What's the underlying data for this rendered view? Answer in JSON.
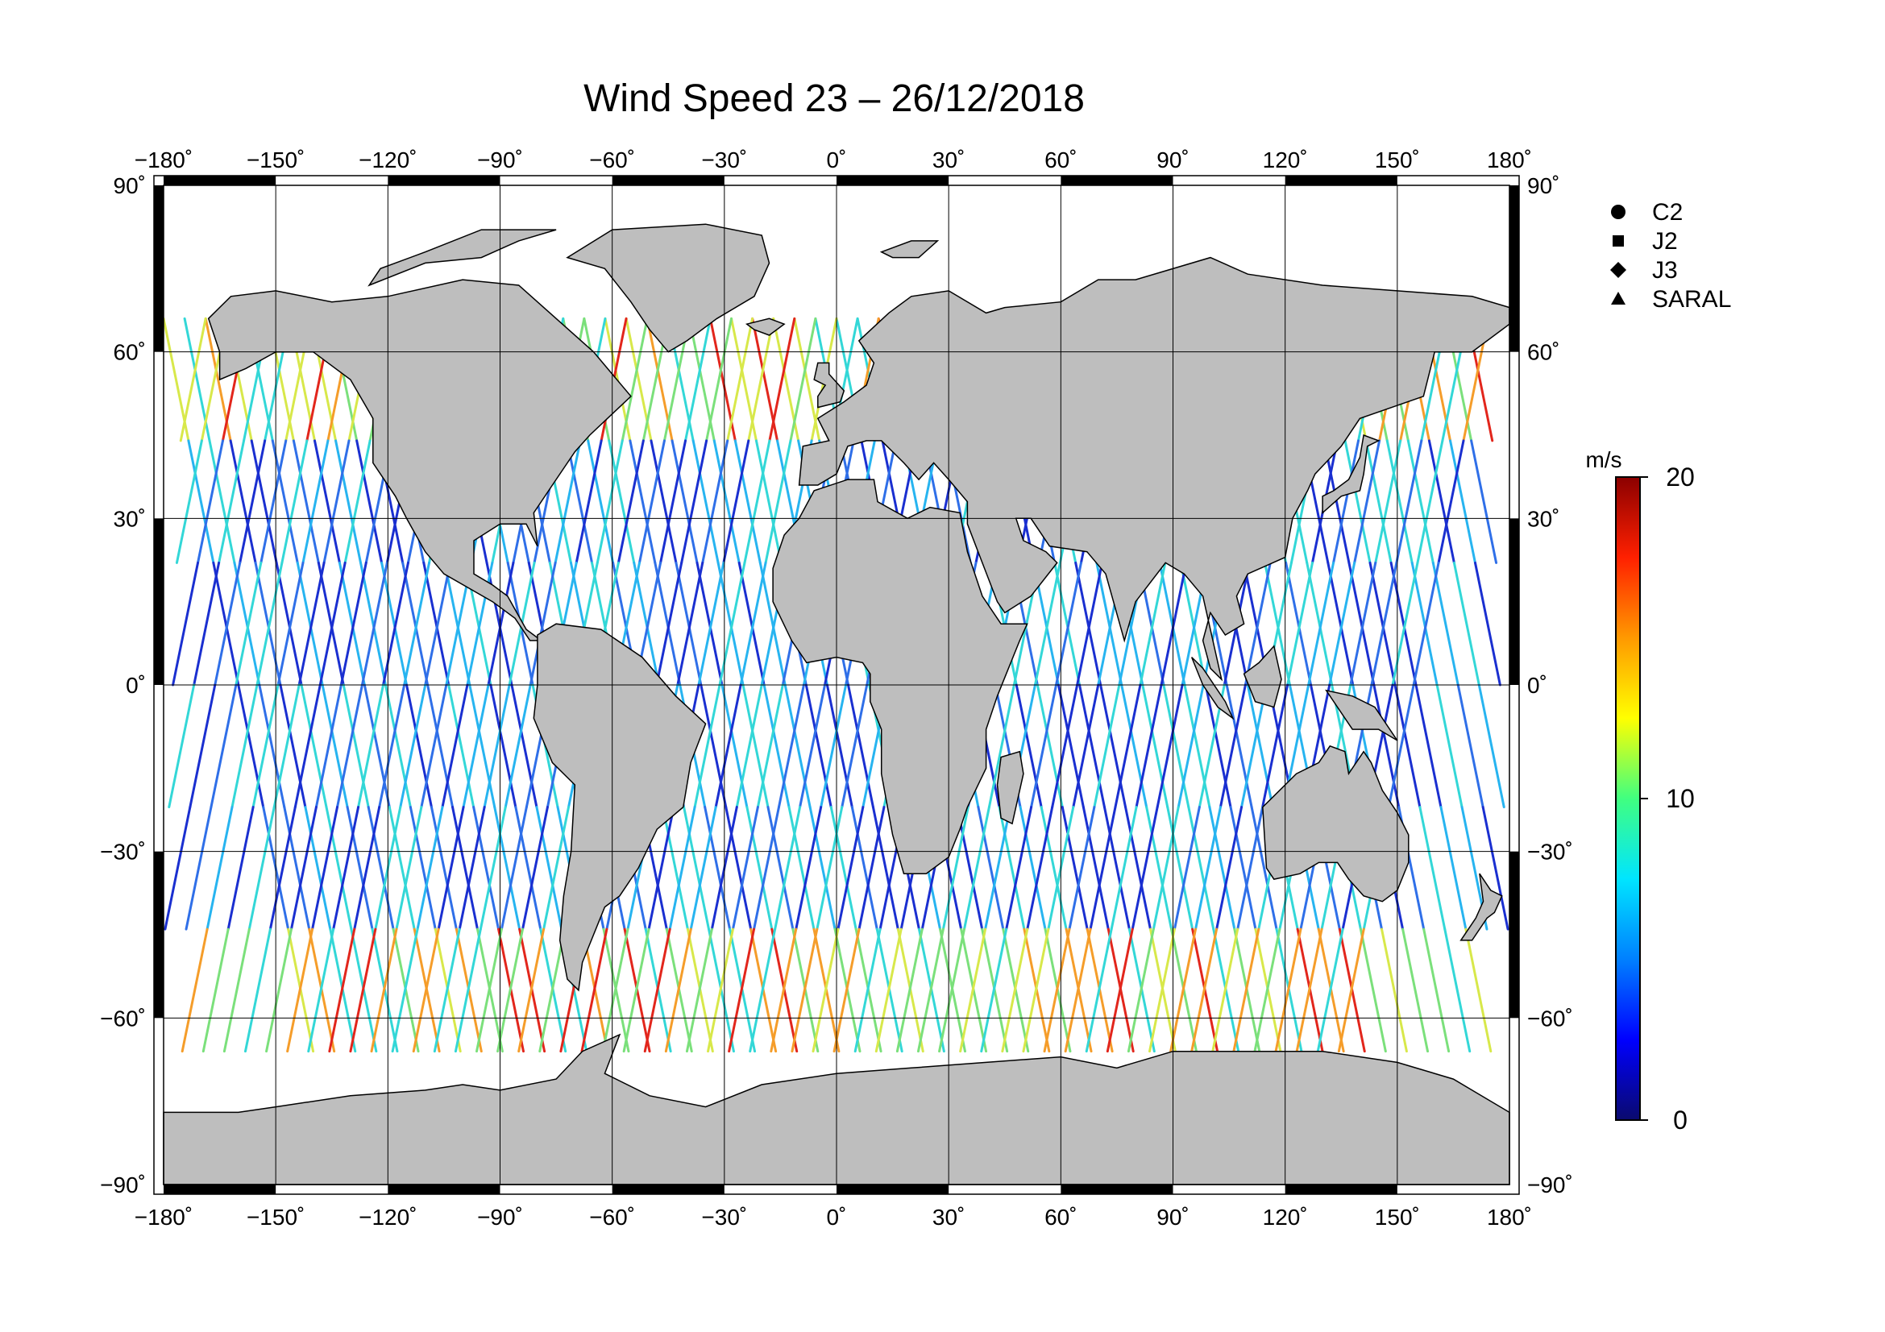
{
  "title": "Wind Speed 23 – 26/12/2018",
  "lon_ticks": [
    "−180˚",
    "−150˚",
    "−120˚",
    "−90˚",
    "−60˚",
    "−30˚",
    "0˚",
    "30˚",
    "60˚",
    "90˚",
    "120˚",
    "150˚",
    "180˚"
  ],
  "lat_ticks": [
    "90˚",
    "60˚",
    "30˚",
    "0˚",
    "−30˚",
    "−60˚",
    "−90˚"
  ],
  "legend": {
    "items": [
      {
        "symbol": "circle",
        "label": "C2"
      },
      {
        "symbol": "square",
        "label": "J2"
      },
      {
        "symbol": "diamond",
        "label": "J3"
      },
      {
        "symbol": "triangle",
        "label": "SARAL"
      }
    ]
  },
  "colorbar": {
    "unit": "m/s",
    "min": 0,
    "max": 20,
    "tick_labels": [
      "20",
      "10",
      "0"
    ],
    "colors": [
      "#0a0a6e",
      "#0000ff",
      "#0080ff",
      "#00e5ff",
      "#40ff80",
      "#ffff00",
      "#ff9900",
      "#ff2000",
      "#8b0000"
    ]
  },
  "map": {
    "land_color": "#bebebe",
    "ocean_color": "#ffffff",
    "track_colors": [
      "#1a2fd0",
      "#2f6fe8",
      "#27b4f0",
      "#33d7d7",
      "#7be07b",
      "#d8e84a",
      "#f59d2a",
      "#e2261c"
    ]
  }
}
